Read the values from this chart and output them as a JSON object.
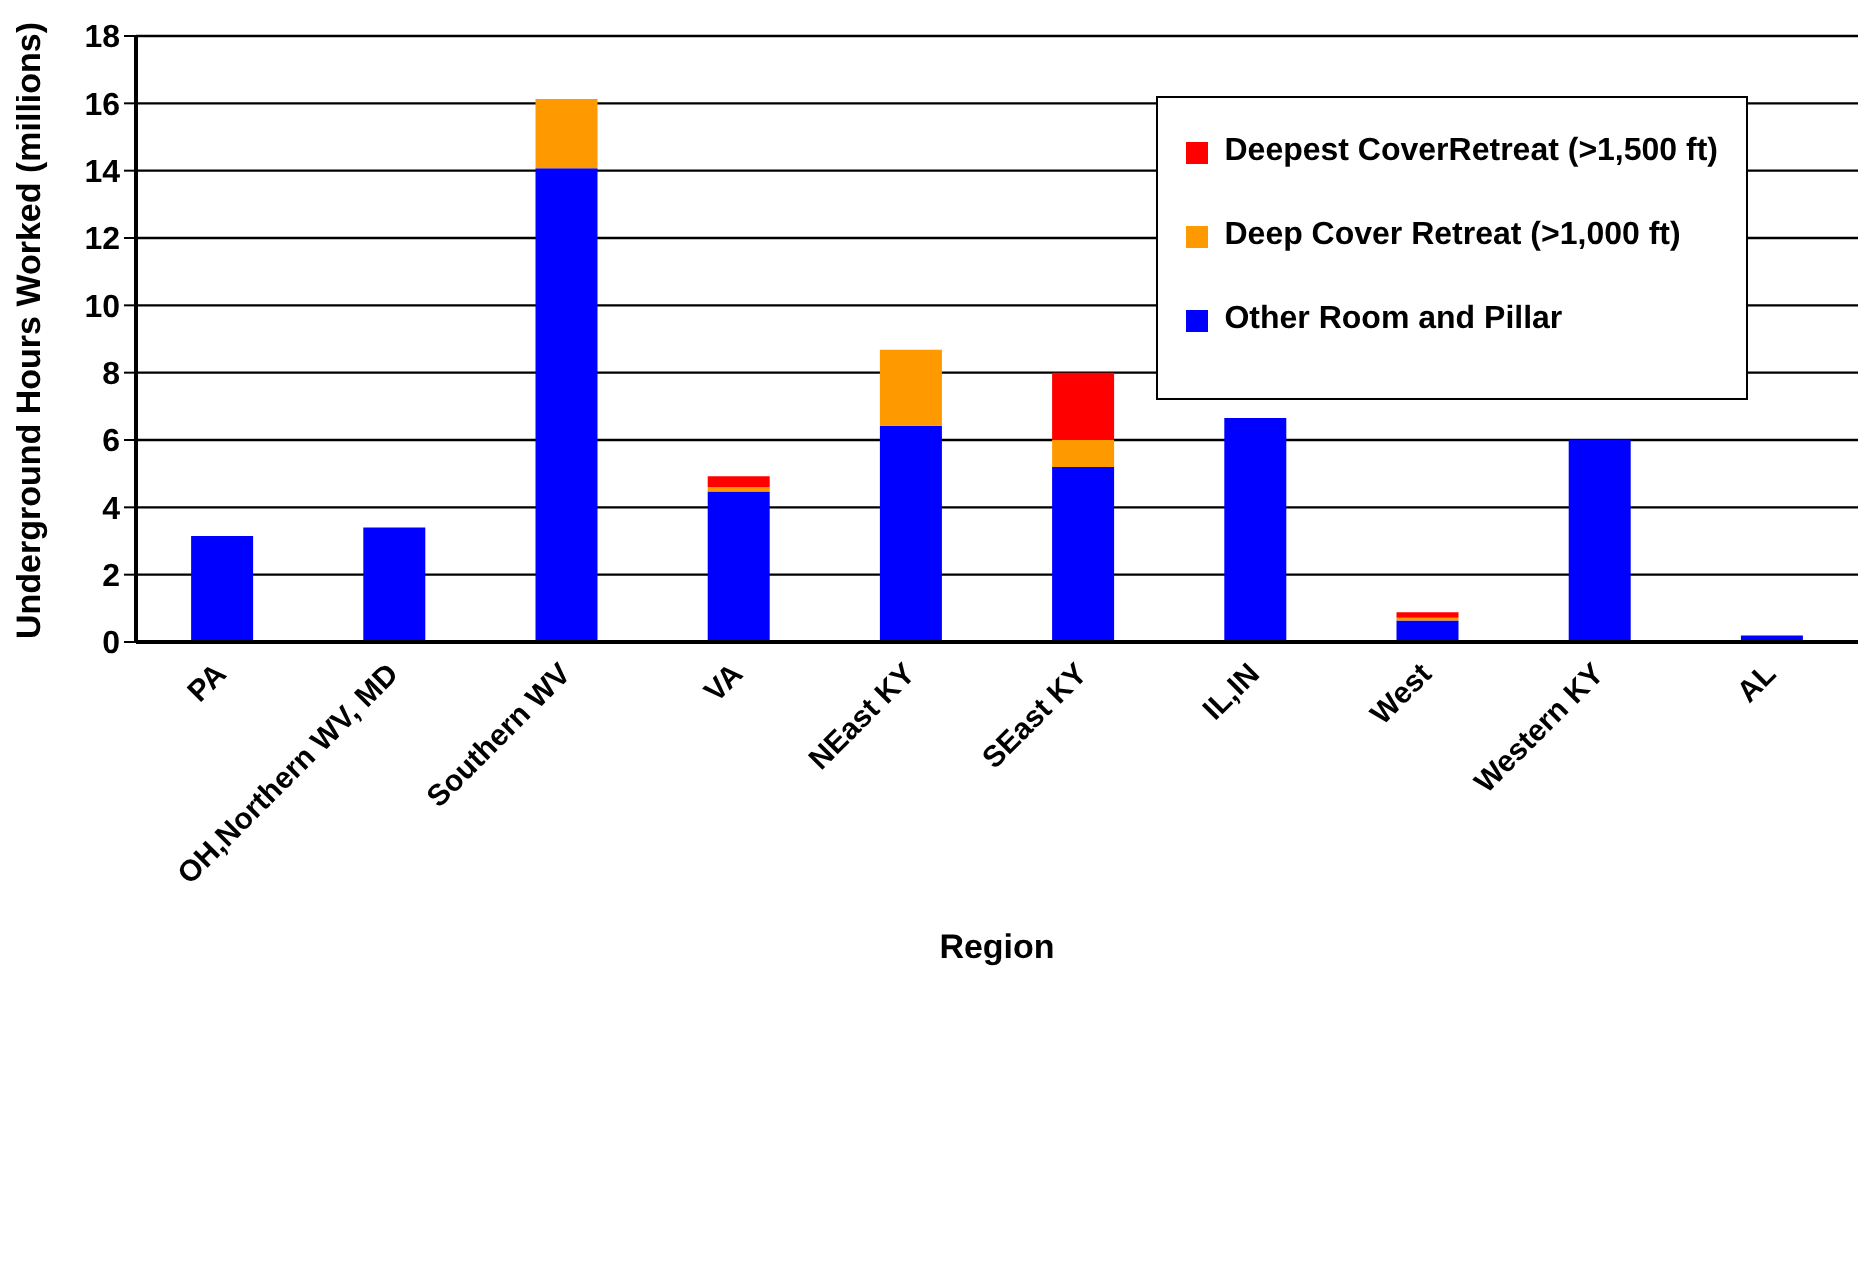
{
  "chart_data": {
    "type": "bar",
    "stacked": true,
    "xlabel": "Region",
    "ylabel": "Underground Hours Worked (millions)",
    "categories": [
      "PA",
      "OH,Northern WV, MD",
      "Southern WV",
      "VA",
      "NEast KY",
      "SEast KY",
      "IL,IN",
      "West",
      "Western KY",
      "AL"
    ],
    "series": [
      {
        "name": "Other Room and Pillar",
        "color": "#0000ff",
        "values": [
          3.15,
          3.4,
          14.07,
          4.47,
          6.42,
          5.2,
          6.65,
          0.64,
          6.0,
          0.19
        ]
      },
      {
        "name": "Deep Cover Retreat (>1,000 ft)",
        "color": "#ff9900",
        "values": [
          0,
          0,
          2.06,
          0.13,
          2.26,
          0.8,
          0,
          0.08,
          0,
          0
        ]
      },
      {
        "name": "Deepest CoverRetreat (>1,500 ft)",
        "color": "#ff0000",
        "values": [
          0,
          0,
          0,
          0.32,
          0,
          2.0,
          0,
          0.16,
          0,
          0
        ]
      }
    ],
    "ylim": [
      0,
      18
    ],
    "yticks": [
      0,
      2,
      4,
      6,
      8,
      10,
      12,
      14,
      16,
      18
    ],
    "grid": "y",
    "legend": "top right"
  }
}
